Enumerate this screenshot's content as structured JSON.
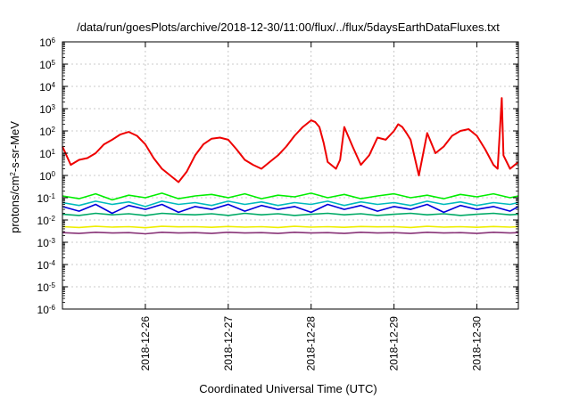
{
  "chart_data": {
    "type": "line",
    "title": "/data/run/goesPlots/archive/2018-12-30/11:00/flux/../flux/5daysEarthDataFluxes.txt",
    "xlabel": "Coordinated Universal Time (UTC)",
    "ylabel": {
      "pre": "protons/cm",
      "sup": "2",
      "post": "-s-sr-MeV"
    },
    "x_range_days": [
      0,
      5.5
    ],
    "x_ticks": [
      {
        "pos": 1,
        "label": "2018-12-26"
      },
      {
        "pos": 2,
        "label": "2018-12-27"
      },
      {
        "pos": 3,
        "label": "2018-12-28"
      },
      {
        "pos": 4,
        "label": "2018-12-29"
      },
      {
        "pos": 5,
        "label": "2018-12-30"
      }
    ],
    "y_scale": "log",
    "y_range": [
      1e-06,
      1000000.0
    ],
    "y_ticks": [
      {
        "exp": 6,
        "base": "10",
        "sup": "6"
      },
      {
        "exp": 5,
        "base": "10",
        "sup": "5"
      },
      {
        "exp": 4,
        "base": "10",
        "sup": "4"
      },
      {
        "exp": 3,
        "base": "10",
        "sup": "3"
      },
      {
        "exp": 2,
        "base": "10",
        "sup": "2"
      },
      {
        "exp": 1,
        "base": "10",
        "sup": "1"
      },
      {
        "exp": 0,
        "base": "10",
        "sup": "0"
      },
      {
        "exp": -1,
        "base": "10",
        "sup": "-1"
      },
      {
        "exp": -2,
        "base": "10",
        "sup": "-2"
      },
      {
        "exp": -3,
        "base": "10",
        "sup": "-3"
      },
      {
        "exp": -4,
        "base": "10",
        "sup": "-4"
      },
      {
        "exp": -5,
        "base": "10",
        "sup": "-5"
      },
      {
        "exp": -6,
        "base": "10",
        "sup": "-6"
      }
    ],
    "grid": true,
    "series": [
      {
        "color": "#ee0000",
        "x": [
          0,
          0.1,
          0.2,
          0.3,
          0.4,
          0.5,
          0.6,
          0.7,
          0.8,
          0.9,
          1.0,
          1.1,
          1.2,
          1.3,
          1.4,
          1.5,
          1.6,
          1.7,
          1.8,
          1.9,
          2.0,
          2.1,
          2.2,
          2.3,
          2.4,
          2.5,
          2.6,
          2.7,
          2.8,
          2.9,
          3.0,
          3.05,
          3.1,
          3.15,
          3.2,
          3.3,
          3.35,
          3.4,
          3.5,
          3.6,
          3.7,
          3.8,
          3.9,
          4.0,
          4.05,
          4.1,
          4.15,
          4.2,
          4.3,
          4.4,
          4.5,
          4.6,
          4.7,
          4.8,
          4.9,
          5.0,
          5.1,
          5.2,
          5.25,
          5.3,
          5.32,
          5.4,
          5.5
        ],
        "y": [
          20,
          3,
          5,
          6,
          10,
          25,
          40,
          70,
          90,
          60,
          25,
          6,
          2,
          1,
          0.5,
          1.5,
          8,
          25,
          45,
          50,
          40,
          15,
          5,
          3,
          2,
          4,
          8,
          20,
          60,
          150,
          300,
          250,
          150,
          30,
          4,
          2,
          5,
          150,
          20,
          3,
          8,
          50,
          40,
          100,
          200,
          150,
          80,
          40,
          1,
          80,
          10,
          20,
          60,
          100,
          120,
          60,
          15,
          3,
          2,
          3000,
          8,
          2,
          4
        ]
      },
      {
        "color": "#00ee00",
        "x": [
          0,
          0.2,
          0.4,
          0.6,
          0.8,
          1.0,
          1.2,
          1.4,
          1.6,
          1.8,
          2.0,
          2.2,
          2.4,
          2.6,
          2.8,
          3.0,
          3.2,
          3.4,
          3.6,
          3.8,
          4.0,
          4.2,
          4.4,
          4.6,
          4.8,
          5.0,
          5.2,
          5.4,
          5.5
        ],
        "y": [
          0.12,
          0.09,
          0.15,
          0.08,
          0.13,
          0.1,
          0.16,
          0.09,
          0.12,
          0.14,
          0.1,
          0.15,
          0.09,
          0.13,
          0.11,
          0.16,
          0.1,
          0.14,
          0.09,
          0.12,
          0.15,
          0.1,
          0.13,
          0.09,
          0.14,
          0.11,
          0.15,
          0.1,
          0.12
        ]
      },
      {
        "color": "#0000dd",
        "x": [
          0,
          0.2,
          0.4,
          0.6,
          0.8,
          1.0,
          1.2,
          1.4,
          1.6,
          1.8,
          2.0,
          2.2,
          2.4,
          2.6,
          2.8,
          3.0,
          3.2,
          3.4,
          3.6,
          3.8,
          4.0,
          4.2,
          4.4,
          4.6,
          4.8,
          5.0,
          5.2,
          5.4,
          5.5
        ],
        "y": [
          0.04,
          0.025,
          0.05,
          0.02,
          0.045,
          0.03,
          0.05,
          0.022,
          0.04,
          0.03,
          0.05,
          0.025,
          0.045,
          0.03,
          0.04,
          0.022,
          0.05,
          0.03,
          0.045,
          0.025,
          0.04,
          0.03,
          0.05,
          0.022,
          0.045,
          0.03,
          0.04,
          0.025,
          0.04
        ]
      },
      {
        "color": "#00bbbb",
        "x": [
          0,
          0.2,
          0.4,
          0.6,
          0.8,
          1.0,
          1.2,
          1.4,
          1.6,
          1.8,
          2.0,
          2.2,
          2.4,
          2.6,
          2.8,
          3.0,
          3.2,
          3.4,
          3.6,
          3.8,
          4.0,
          4.2,
          4.4,
          4.6,
          4.8,
          5.0,
          5.2,
          5.4,
          5.5
        ],
        "y": [
          0.06,
          0.045,
          0.07,
          0.05,
          0.065,
          0.04,
          0.07,
          0.05,
          0.06,
          0.045,
          0.07,
          0.05,
          0.065,
          0.045,
          0.06,
          0.05,
          0.07,
          0.045,
          0.065,
          0.05,
          0.06,
          0.045,
          0.07,
          0.05,
          0.065,
          0.045,
          0.06,
          0.05,
          0.06
        ]
      },
      {
        "color": "#00aa66",
        "x": [
          0,
          0.2,
          0.4,
          0.6,
          0.8,
          1.0,
          1.2,
          1.4,
          1.6,
          1.8,
          2.0,
          2.2,
          2.4,
          2.6,
          2.8,
          3.0,
          3.2,
          3.4,
          3.6,
          3.8,
          4.0,
          4.2,
          4.4,
          4.6,
          4.8,
          5.0,
          5.2,
          5.4,
          5.5
        ],
        "y": [
          0.018,
          0.016,
          0.02,
          0.017,
          0.019,
          0.016,
          0.02,
          0.018,
          0.017,
          0.019,
          0.016,
          0.02,
          0.017,
          0.019,
          0.016,
          0.018,
          0.02,
          0.017,
          0.019,
          0.016,
          0.018,
          0.02,
          0.017,
          0.019,
          0.016,
          0.018,
          0.02,
          0.017,
          0.018
        ]
      },
      {
        "color": "#eeee00",
        "x": [
          0,
          0.2,
          0.4,
          0.6,
          0.8,
          1.0,
          1.2,
          1.4,
          1.6,
          1.8,
          2.0,
          2.2,
          2.4,
          2.6,
          2.8,
          3.0,
          3.2,
          3.4,
          3.6,
          3.8,
          4.0,
          4.2,
          4.4,
          4.6,
          4.8,
          5.0,
          5.2,
          5.4,
          5.5
        ],
        "y": [
          0.005,
          0.0046,
          0.0052,
          0.0048,
          0.005,
          0.0045,
          0.0052,
          0.0049,
          0.005,
          0.0047,
          0.0051,
          0.0048,
          0.005,
          0.0046,
          0.0052,
          0.0048,
          0.005,
          0.0047,
          0.0051,
          0.0049,
          0.005,
          0.0046,
          0.0052,
          0.0048,
          0.005,
          0.0047,
          0.0051,
          0.0048,
          0.005
        ]
      },
      {
        "color": "#883377",
        "x": [
          0,
          0.2,
          0.4,
          0.6,
          0.8,
          1.0,
          1.2,
          1.4,
          1.6,
          1.8,
          2.0,
          2.2,
          2.4,
          2.6,
          2.8,
          3.0,
          3.2,
          3.4,
          3.6,
          3.8,
          4.0,
          4.2,
          4.4,
          4.6,
          4.8,
          5.0,
          5.2,
          5.4,
          5.5
        ],
        "y": [
          0.0027,
          0.0025,
          0.0028,
          0.0026,
          0.0027,
          0.0024,
          0.0028,
          0.0026,
          0.0027,
          0.0025,
          0.0028,
          0.0026,
          0.0027,
          0.0025,
          0.0028,
          0.0026,
          0.0027,
          0.0025,
          0.0028,
          0.0026,
          0.0027,
          0.0025,
          0.0028,
          0.0026,
          0.0027,
          0.0025,
          0.0028,
          0.0026,
          0.0027
        ]
      }
    ]
  }
}
